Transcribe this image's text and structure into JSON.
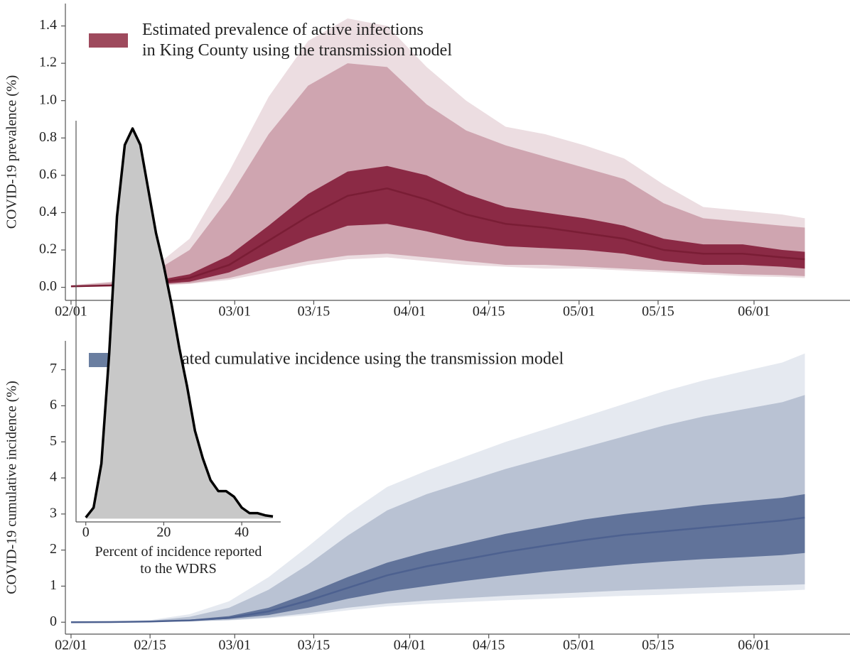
{
  "chart_data": [
    {
      "type": "band",
      "ylabel": "COVID-19 prevalence (%)",
      "x": [
        "02/01",
        "02/08",
        "02/15",
        "02/22",
        "02/29",
        "03/07",
        "03/14",
        "03/21",
        "03/28",
        "04/04",
        "04/11",
        "04/18",
        "04/25",
        "05/02",
        "05/09",
        "05/16",
        "05/23",
        "05/30",
        "06/06",
        "06/10"
      ],
      "series": [
        {
          "name": "Estimated prevalence of active infections\nin King County using the transmission model",
          "color": "#7a1d35",
          "legend_color": "#9e4a5d",
          "values": [
            0.005,
            0.01,
            0.02,
            0.05,
            0.12,
            0.25,
            0.38,
            0.49,
            0.53,
            0.47,
            0.39,
            0.34,
            0.32,
            0.29,
            0.26,
            0.2,
            0.18,
            0.18,
            0.16,
            0.15
          ]
        }
      ],
      "bands": [
        {
          "color": "#ecdde1",
          "lower": [
            0.001,
            0.004,
            0.008,
            0.018,
            0.04,
            0.08,
            0.12,
            0.15,
            0.16,
            0.14,
            0.12,
            0.11,
            0.1,
            0.1,
            0.09,
            0.08,
            0.07,
            0.06,
            0.055,
            0.05
          ],
          "upper": [
            0.012,
            0.03,
            0.09,
            0.26,
            0.62,
            1.02,
            1.32,
            1.44,
            1.4,
            1.18,
            1.0,
            0.86,
            0.82,
            0.76,
            0.69,
            0.55,
            0.43,
            0.41,
            0.39,
            0.37
          ]
        },
        {
          "color": "#cfa5b0",
          "lower": [
            0.002,
            0.005,
            0.01,
            0.022,
            0.05,
            0.1,
            0.14,
            0.17,
            0.18,
            0.16,
            0.14,
            0.12,
            0.12,
            0.11,
            0.1,
            0.09,
            0.08,
            0.07,
            0.065,
            0.06
          ],
          "upper": [
            0.01,
            0.025,
            0.07,
            0.2,
            0.48,
            0.82,
            1.08,
            1.2,
            1.18,
            0.98,
            0.84,
            0.76,
            0.7,
            0.64,
            0.58,
            0.45,
            0.37,
            0.35,
            0.33,
            0.32
          ]
        },
        {
          "color": "#8b2a45",
          "lower": [
            0.003,
            0.007,
            0.014,
            0.03,
            0.08,
            0.17,
            0.26,
            0.33,
            0.34,
            0.3,
            0.25,
            0.22,
            0.21,
            0.2,
            0.18,
            0.14,
            0.12,
            0.12,
            0.11,
            0.1
          ],
          "upper": [
            0.007,
            0.014,
            0.03,
            0.07,
            0.17,
            0.33,
            0.5,
            0.62,
            0.65,
            0.6,
            0.5,
            0.43,
            0.4,
            0.37,
            0.33,
            0.26,
            0.23,
            0.23,
            0.2,
            0.19
          ]
        }
      ],
      "xlim": [
        "01/31",
        "06/18"
      ],
      "xticks": [
        "02/01",
        "02/15",
        "03/01",
        "03/15",
        "04/01",
        "04/15",
        "05/01",
        "05/15",
        "06/01"
      ],
      "ylim": [
        -0.07,
        1.52
      ],
      "yticks": [
        {
          "value": 0,
          "label": "0.0"
        },
        0.2,
        0.4,
        0.6,
        0.8,
        {
          "value": 1,
          "label": "1.0"
        },
        1.2,
        1.4
      ]
    },
    {
      "type": "band",
      "ylabel": "COVID-19 cumulative incidence (%)",
      "x": [
        "02/01",
        "02/08",
        "02/15",
        "02/22",
        "02/29",
        "03/07",
        "03/14",
        "03/21",
        "03/28",
        "04/04",
        "04/11",
        "04/18",
        "04/25",
        "05/02",
        "05/09",
        "05/16",
        "05/23",
        "05/30",
        "06/06",
        "06/10"
      ],
      "series": [
        {
          "name": "Estimated cumulative incidence using the transmission model",
          "color": "#4d6190",
          "legend_color": "#6a7ea0",
          "values": [
            0,
            0.005,
            0.02,
            0.05,
            0.12,
            0.3,
            0.6,
            0.95,
            1.3,
            1.55,
            1.75,
            1.95,
            2.12,
            2.28,
            2.42,
            2.52,
            2.62,
            2.72,
            2.82,
            2.9
          ]
        }
      ],
      "bands": [
        {
          "color": "#e5e9f0",
          "lower": [
            0,
            0.002,
            0.008,
            0.02,
            0.05,
            0.11,
            0.2,
            0.33,
            0.44,
            0.51,
            0.56,
            0.61,
            0.65,
            0.69,
            0.73,
            0.76,
            0.8,
            0.83,
            0.87,
            0.9
          ],
          "upper": [
            0,
            0.012,
            0.06,
            0.22,
            0.58,
            1.25,
            2.1,
            3.0,
            3.75,
            4.2,
            4.6,
            5.0,
            5.35,
            5.7,
            6.05,
            6.4,
            6.7,
            6.95,
            7.2,
            7.45
          ]
        },
        {
          "color": "#b9c2d3",
          "lower": [
            0,
            0.003,
            0.01,
            0.025,
            0.06,
            0.13,
            0.25,
            0.4,
            0.52,
            0.6,
            0.67,
            0.73,
            0.78,
            0.83,
            0.88,
            0.92,
            0.96,
            1.0,
            1.03,
            1.05
          ],
          "upper": [
            0,
            0.01,
            0.04,
            0.15,
            0.4,
            0.9,
            1.6,
            2.4,
            3.1,
            3.55,
            3.9,
            4.25,
            4.55,
            4.85,
            5.15,
            5.45,
            5.7,
            5.9,
            6.1,
            6.3
          ]
        },
        {
          "color": "#61739a",
          "lower": [
            0,
            0.004,
            0.015,
            0.04,
            0.09,
            0.2,
            0.4,
            0.65,
            0.85,
            1.0,
            1.15,
            1.28,
            1.4,
            1.5,
            1.6,
            1.68,
            1.75,
            1.8,
            1.86,
            1.92
          ],
          "upper": [
            0,
            0.006,
            0.025,
            0.07,
            0.17,
            0.4,
            0.8,
            1.25,
            1.65,
            1.95,
            2.2,
            2.45,
            2.65,
            2.85,
            3.0,
            3.12,
            3.25,
            3.35,
            3.45,
            3.55
          ]
        }
      ],
      "xlim": [
        "01/31",
        "06/18"
      ],
      "xticks": [
        "02/01",
        "02/15",
        "03/01",
        "03/15",
        "04/01",
        "04/15",
        "05/01",
        "05/15",
        "06/01"
      ],
      "ylim": [
        -0.33,
        7.8
      ],
      "yticks": [
        0,
        1,
        2,
        3,
        4,
        5,
        6,
        7
      ]
    },
    {
      "type": "area",
      "xlabel": "Percent of incidence reported\nto the WDRS",
      "x": [
        0,
        2,
        4,
        6,
        8,
        10,
        12,
        14,
        16,
        18,
        20,
        22,
        24,
        26,
        28,
        30,
        32,
        34,
        36,
        38,
        40,
        42,
        44,
        46,
        48
      ],
      "values": [
        0.0002,
        0.002,
        0.01,
        0.03,
        0.055,
        0.068,
        0.071,
        0.068,
        0.06,
        0.052,
        0.046,
        0.039,
        0.031,
        0.024,
        0.016,
        0.011,
        0.007,
        0.005,
        0.005,
        0.004,
        0.002,
        0.001,
        0.001,
        0.0006,
        0.0004
      ],
      "color": "#c8c8c8",
      "line_color": "#000000",
      "xlim": [
        -2.5,
        50
      ],
      "ylim": [
        -0.0006,
        0.075
      ],
      "xticks": [
        0,
        20,
        40
      ]
    }
  ]
}
